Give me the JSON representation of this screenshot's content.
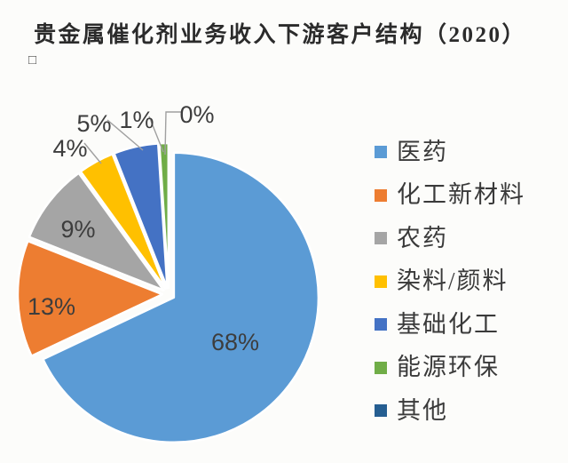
{
  "title": "贵金属催化剂业务收入下游客户结构（2020）",
  "stray_glyph": "□",
  "chart_data": {
    "type": "pie",
    "title": "贵金属催化剂业务收入下游客户结构（2020）",
    "categories": [
      "医药",
      "化工新材料",
      "农药",
      "染料/颜料",
      "基础化工",
      "能源环保",
      "其他"
    ],
    "values": [
      68,
      13,
      9,
      4,
      5,
      1,
      0
    ],
    "labels": [
      "68%",
      "13%",
      "9%",
      "4%",
      "5%",
      "1%",
      "0%"
    ],
    "colors": [
      "#5B9BD5",
      "#ED7D31",
      "#A5A5A5",
      "#FFC000",
      "#4472C4",
      "#70AD47",
      "#255E91"
    ],
    "legend_position": "right",
    "start_angle_deg": -90,
    "direction": "clockwise",
    "label_color": "#3d3d3d",
    "leader_line_color": "#a0a0a0",
    "slice_border_color": "#ffffff"
  }
}
